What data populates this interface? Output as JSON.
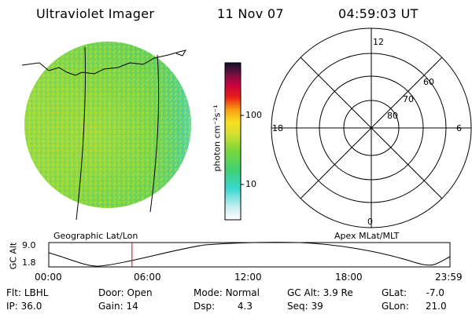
{
  "header": {
    "instrument": "Ultraviolet Imager",
    "date": "11 Nov 07",
    "time": "04:59:03 UT"
  },
  "colorbar": {
    "unit_label": "photon cm⁻²s⁻¹",
    "ticks": [
      {
        "label": "100",
        "value": 100
      },
      {
        "label": "10",
        "value": 10
      }
    ]
  },
  "polar_plot": {
    "clock_labels": {
      "top": "12",
      "left": "18",
      "right": "6",
      "bottom": "0"
    },
    "lat_labels": [
      "60",
      "70",
      "80"
    ]
  },
  "timeline": {
    "ylabel": "GC Alt",
    "yticks": [
      "9.0",
      "1.8"
    ],
    "left_caption": "Geographic Lat/Lon",
    "right_caption": "Apex MLat/MLT",
    "xticks": [
      "00:00",
      "06:00",
      "12:00",
      "18:00",
      "23:59"
    ],
    "marker_time_hours": 4.98
  },
  "status": {
    "row1": [
      {
        "key": "Flt:",
        "value": "LBHL"
      },
      {
        "key": "Door:",
        "value": "Open"
      },
      {
        "key": "Mode:",
        "value": "Normal"
      },
      {
        "key": "GC Alt:",
        "value": "3.9 Re"
      },
      {
        "key": "GLat:",
        "value": "-7.0"
      }
    ],
    "row2": [
      {
        "key": "IP:",
        "value": "36.0"
      },
      {
        "key": "Gain:",
        "value": "14"
      },
      {
        "key": "Dsp:",
        "value": "4.3"
      },
      {
        "key": "Seq:",
        "value": "39"
      },
      {
        "key": "GLon:",
        "value": "21.0"
      }
    ]
  },
  "colors": {
    "disk_green": "#7fd640",
    "disk_yellow": "#c4e23a",
    "disk_cyan": "#3fd8c8",
    "marker": "#e00000"
  }
}
